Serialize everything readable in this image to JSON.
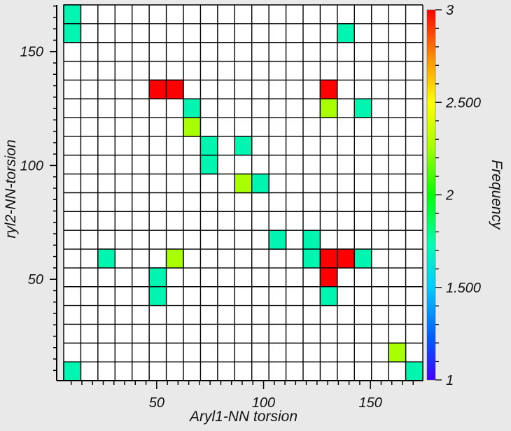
{
  "chart_data": {
    "type": "heatmap",
    "xlabel": "Aryl1-NN torsion",
    "ylabel": "ryl2-NN-torsion",
    "colorbar_label": "Frequency",
    "xlim": [
      6.5,
      174.5
    ],
    "ylim": [
      5.5,
      170.5
    ],
    "x_ticks": [
      50,
      100,
      150
    ],
    "y_ticks": [
      50,
      100,
      150
    ],
    "x_tick_labels": [
      "50",
      "100",
      "150"
    ],
    "y_tick_labels": [
      "50",
      "100",
      "150"
    ],
    "colorbar_range": [
      1,
      3
    ],
    "colorbar_ticks": [
      1,
      1.5,
      2,
      2.5,
      3
    ],
    "colorbar_tick_labels": [
      "1",
      "1.500",
      "2",
      "2.500",
      "3"
    ],
    "grid": true,
    "cells": [
      {
        "x": 11,
        "y": 166,
        "value": 1.6
      },
      {
        "x": 11,
        "y": 158,
        "value": 1.6
      },
      {
        "x": 139,
        "y": 158,
        "value": 1.6
      },
      {
        "x": 53,
        "y": 133,
        "value": 3
      },
      {
        "x": 61,
        "y": 133,
        "value": 3
      },
      {
        "x": 130,
        "y": 133,
        "value": 3
      },
      {
        "x": 70,
        "y": 125,
        "value": 1.6
      },
      {
        "x": 130,
        "y": 125,
        "value": 2.3
      },
      {
        "x": 147,
        "y": 125,
        "value": 1.6
      },
      {
        "x": 70,
        "y": 117,
        "value": 2.3
      },
      {
        "x": 78,
        "y": 108,
        "value": 1.6
      },
      {
        "x": 87,
        "y": 108,
        "value": 1.6
      },
      {
        "x": 78,
        "y": 100,
        "value": 1.6
      },
      {
        "x": 87,
        "y": 91,
        "value": 2.3
      },
      {
        "x": 95,
        "y": 91,
        "value": 1.6
      },
      {
        "x": 104,
        "y": 67,
        "value": 1.6
      },
      {
        "x": 121,
        "y": 67,
        "value": 1.6
      },
      {
        "x": 28,
        "y": 58,
        "value": 1.6
      },
      {
        "x": 61,
        "y": 58,
        "value": 2.3
      },
      {
        "x": 121,
        "y": 58,
        "value": 1.6
      },
      {
        "x": 130,
        "y": 58,
        "value": 3
      },
      {
        "x": 139,
        "y": 58,
        "value": 3
      },
      {
        "x": 147,
        "y": 58,
        "value": 1.6
      },
      {
        "x": 53,
        "y": 50,
        "value": 1.6
      },
      {
        "x": 130,
        "y": 50,
        "value": 3
      },
      {
        "x": 53,
        "y": 42,
        "value": 1.6
      },
      {
        "x": 130,
        "y": 42,
        "value": 1.6
      },
      {
        "x": 164,
        "y": 17,
        "value": 2.3
      },
      {
        "x": 11,
        "y": 9,
        "value": 1.6
      },
      {
        "x": 172,
        "y": 9,
        "value": 1.6
      }
    ]
  }
}
